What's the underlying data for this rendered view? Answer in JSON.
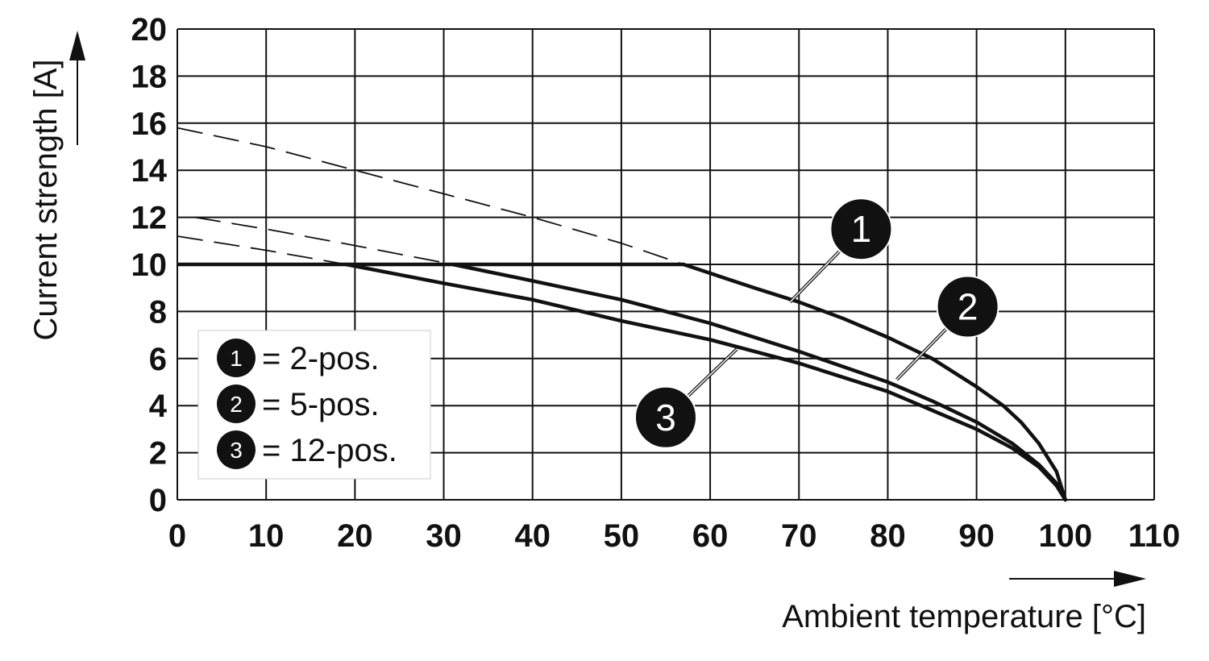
{
  "chart_data": {
    "type": "line",
    "title": "",
    "xlabel": "Ambient temperature [°C]",
    "ylabel": "Current strength [A]",
    "xlim": [
      0,
      110
    ],
    "ylim": [
      0,
      20
    ],
    "x_ticks": [
      0,
      10,
      20,
      30,
      40,
      50,
      60,
      70,
      80,
      90,
      100,
      110
    ],
    "y_ticks": [
      0,
      2,
      4,
      6,
      8,
      10,
      12,
      14,
      16,
      18,
      20
    ],
    "grid": true,
    "legend_position": "bottom-left",
    "max_current": {
      "value": 10,
      "x_range": [
        0,
        57
      ]
    },
    "series": [
      {
        "marker": "1",
        "name": "2-pos.",
        "legend_label": "= 2-pos.",
        "dashed": {
          "x": [
            0,
            10,
            20,
            30,
            40,
            50,
            57
          ],
          "y": [
            15.8,
            15.0,
            14.0,
            13.0,
            12.0,
            10.9,
            10.0
          ]
        },
        "solid": {
          "x": [
            57,
            65,
            70,
            75,
            80,
            85,
            90,
            93,
            95,
            97,
            99,
            100
          ],
          "y": [
            10.0,
            9.0,
            8.4,
            7.7,
            6.9,
            6.0,
            4.8,
            4.0,
            3.3,
            2.4,
            1.2,
            0
          ]
        }
      },
      {
        "marker": "2",
        "name": "5-pos.",
        "legend_label": "= 5-pos.",
        "dashed": {
          "x": [
            2,
            10,
            20,
            31
          ],
          "y": [
            12.0,
            11.5,
            10.8,
            10.0
          ]
        },
        "solid": {
          "x": [
            31,
            40,
            50,
            60,
            70,
            80,
            85,
            90,
            94,
            97,
            99,
            100
          ],
          "y": [
            10.0,
            9.3,
            8.5,
            7.5,
            6.3,
            5.0,
            4.2,
            3.3,
            2.4,
            1.5,
            0.7,
            0
          ]
        }
      },
      {
        "marker": "3",
        "name": "12-pos.",
        "legend_label": "= 12-pos.",
        "dashed": {
          "x": [
            0,
            10,
            19
          ],
          "y": [
            11.2,
            10.6,
            10.0
          ]
        },
        "solid": {
          "x": [
            19,
            30,
            40,
            50,
            60,
            70,
            80,
            85,
            90,
            94,
            97,
            99,
            100
          ],
          "y": [
            10.0,
            9.2,
            8.5,
            7.6,
            6.8,
            5.8,
            4.6,
            3.8,
            3.0,
            2.2,
            1.4,
            0.6,
            0
          ]
        }
      }
    ],
    "callouts": [
      {
        "marker": "1",
        "circle": [
          77,
          11.5
        ],
        "to": [
          69,
          8.4
        ]
      },
      {
        "marker": "2",
        "circle": [
          89,
          8.2
        ],
        "to": [
          81,
          5.1
        ]
      },
      {
        "marker": "3",
        "circle": [
          55,
          3.5
        ],
        "to": [
          63,
          6.4
        ]
      }
    ]
  }
}
